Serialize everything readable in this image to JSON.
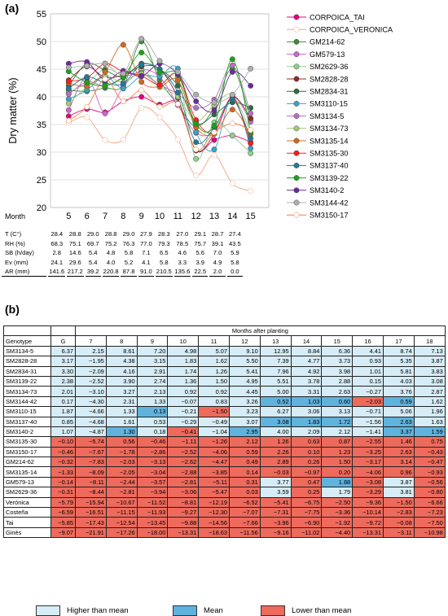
{
  "panel_a_label": "(a)",
  "panel_b_label": "(b)",
  "chart_data": [
    {
      "type": "line",
      "ylabel": "Dry matter (%)",
      "xlabel": "Month",
      "ylim": [
        20,
        55
      ],
      "yticks": [
        20,
        25,
        30,
        35,
        40,
        45,
        50,
        55
      ],
      "x": [
        5,
        6,
        7,
        8,
        9,
        10,
        11,
        12,
        13,
        14,
        15
      ],
      "legend_position": "right",
      "series": [
        {
          "name": "CORPOICA_TAI",
          "color": "#e6007e",
          "values": [
            36.5,
            37.8,
            37.2,
            39.2,
            40.0,
            38.6,
            38.8,
            30.3,
            32.2,
            33.0,
            31.8
          ]
        },
        {
          "name": "CORPOICA_VERONICA",
          "color": "#f4a582",
          "values": [
            35.3,
            36.3,
            32.2,
            32.3,
            38.0,
            36.3,
            32.3,
            25.8,
            29.5,
            24.3,
            23.0
          ]
        },
        {
          "name": "GM214-62",
          "color": "#3c8d3c",
          "values": [
            41.2,
            41.0,
            41.6,
            42.0,
            50.0,
            43.0,
            38.6,
            34.6,
            38.0,
            45.1,
            36.0
          ]
        },
        {
          "name": "GM579-13",
          "color": "#cc66cc",
          "values": [
            37.6,
            43.5,
            37.0,
            41.8,
            44.8,
            43.6,
            38.5,
            33.5,
            33.8,
            40.0,
            35.5
          ]
        },
        {
          "name": "SM2629-36",
          "color": "#8fd18f",
          "values": [
            40.8,
            42.5,
            45.0,
            44.0,
            45.0,
            42.2,
            43.6,
            28.8,
            35.4,
            33.0,
            29.8
          ]
        },
        {
          "name": "SM2828-28",
          "color": "#8b2c2c",
          "values": [
            43.0,
            45.5,
            43.5,
            44.0,
            45.5,
            45.0,
            39.8,
            30.4,
            33.3,
            40.0,
            36.1
          ]
        },
        {
          "name": "SM2834-31",
          "color": "#2e6b44",
          "values": [
            42.0,
            46.0,
            44.8,
            43.6,
            46.0,
            45.0,
            42.0,
            35.3,
            36.8,
            39.0,
            38.0
          ]
        },
        {
          "name": "SM3110-15",
          "color": "#3aa3c8",
          "values": [
            39.6,
            41.2,
            43.7,
            41.5,
            43.8,
            43.7,
            45.1,
            33.6,
            30.5,
            40.0,
            30.7
          ]
        },
        {
          "name": "SM3134-5",
          "color": "#b56fc2",
          "values": [
            40.5,
            42.7,
            42.0,
            43.5,
            44.3,
            42.2,
            40.5,
            38.0,
            39.5,
            45.7,
            37.0
          ]
        },
        {
          "name": "SM3134-73",
          "color": "#a5c97a",
          "values": [
            38.8,
            41.8,
            43.8,
            42.6,
            44.2,
            41.8,
            40.0,
            35.6,
            38.5,
            40.3,
            33.6
          ]
        },
        {
          "name": "SM3135-14",
          "color": "#d2691e",
          "values": [
            42.5,
            42.0,
            44.5,
            49.4,
            42.7,
            41.8,
            43.0,
            34.5,
            33.3,
            37.7,
            33.2
          ]
        },
        {
          "name": "SM3135-30",
          "color": "#ff1a1a",
          "values": [
            42.8,
            43.4,
            46.0,
            44.5,
            43.8,
            42.2,
            44.0,
            35.8,
            33.6,
            39.9,
            31.6
          ]
        },
        {
          "name": "SM3137-40",
          "color": "#1f7a99",
          "values": [
            41.5,
            43.6,
            42.5,
            42.4,
            45.8,
            45.0,
            40.8,
            31.8,
            34.4,
            39.5,
            32.5
          ]
        },
        {
          "name": "SM3139-22",
          "color": "#18a518",
          "values": [
            44.6,
            42.6,
            42.0,
            43.6,
            48.0,
            44.4,
            44.0,
            35.1,
            34.8,
            46.8,
            33.6
          ]
        },
        {
          "name": "SM3140-2",
          "color": "#6a2c9c",
          "values": [
            46.0,
            46.3,
            43.0,
            44.7,
            43.7,
            46.0,
            44.1,
            39.2,
            37.5,
            44.5,
            42.0
          ]
        },
        {
          "name": "SM3144-42",
          "color": "#b0b0b0",
          "values": [
            45.3,
            45.6,
            46.0,
            44.2,
            50.5,
            46.5,
            44.5,
            40.4,
            39.0,
            40.4,
            45.1
          ]
        },
        {
          "name": "SM3150-17",
          "color": "#f08040",
          "values": [
            35.7,
            38.2,
            43.2,
            39.2,
            41.2,
            38.2,
            38.7,
            30.5,
            33.6,
            35.2,
            34.0
          ]
        }
      ]
    },
    {
      "type": "table",
      "top_header": "Months after planting",
      "columns": [
        "Genotype",
        "G",
        "7",
        "8",
        "9",
        "10",
        "11",
        "12",
        "13",
        "14",
        "15",
        "16",
        "17",
        "18"
      ],
      "legend": [
        "Higher than mean",
        "Mean",
        "Lower than mean"
      ],
      "rows": [
        {
          "genotype": "SM3134-5",
          "values": [
            "6.37",
            "2.15",
            "8.61",
            "7.20",
            "4.98",
            "5.07",
            "9.10",
            "12.95",
            "8.84",
            "6.36",
            "4.41",
            "8.74",
            "7.13"
          ],
          "cats": [
            "h",
            "h",
            "h",
            "h",
            "h",
            "h",
            "h",
            "h",
            "h",
            "h",
            "h",
            "h",
            "h"
          ]
        },
        {
          "genotype": "SM2828-28",
          "values": [
            "3.17",
            "−1.95",
            "4.38",
            "3.15",
            "1.83",
            "1.62",
            "5.50",
            "7.39",
            "4.77",
            "3.73",
            "0.93",
            "5.35",
            "3.87"
          ],
          "cats": [
            "h",
            "h",
            "h",
            "h",
            "h",
            "h",
            "h",
            "h",
            "h",
            "h",
            "h",
            "h",
            "h"
          ]
        },
        {
          "genotype": "SM2834-31",
          "values": [
            "3.30",
            "−2.09",
            "4.16",
            "2.91",
            "1.74",
            "1.26",
            "5.41",
            "7.96",
            "4.92",
            "3.98",
            "1.01",
            "5.81",
            "3.83"
          ],
          "cats": [
            "h",
            "h",
            "h",
            "h",
            "h",
            "h",
            "h",
            "h",
            "h",
            "h",
            "h",
            "h",
            "h"
          ]
        },
        {
          "genotype": "SM3139-22",
          "values": [
            "2.38",
            "−2.52",
            "3.90",
            "2.74",
            "1.36",
            "1.50",
            "4.95",
            "5.51",
            "3.78",
            "2.88",
            "0.15",
            "4.03",
            "3.08"
          ],
          "cats": [
            "h",
            "h",
            "h",
            "h",
            "h",
            "h",
            "h",
            "h",
            "h",
            "h",
            "h",
            "h",
            "h"
          ]
        },
        {
          "genotype": "SM3134-73",
          "values": [
            "2.01",
            "−3.10",
            "3.27",
            "2.13",
            "0.92",
            "0.92",
            "4.45",
            "5.00",
            "3.31",
            "2.63",
            "−0.27",
            "3.76",
            "2.87"
          ],
          "cats": [
            "h",
            "h",
            "h",
            "h",
            "h",
            "h",
            "h",
            "h",
            "h",
            "h",
            "h",
            "h",
            "h"
          ]
        },
        {
          "genotype": "SM3144-42",
          "values": [
            "0.17",
            "−4.30",
            "2.31",
            "1.33",
            "−0.07",
            "0.83",
            "3.26",
            "0.52",
            "1.03",
            "0.60",
            "−2.03",
            "0.59",
            "1.62"
          ],
          "cats": [
            "h",
            "h",
            "h",
            "h",
            "h",
            "h",
            "h",
            "m",
            "m",
            "m",
            "l",
            "m",
            "h"
          ]
        },
        {
          "genotype": "SM3110-15",
          "values": [
            "1.87",
            "−4.66",
            "1.33",
            "0.13",
            "−0.21",
            "−1.50",
            "3.23",
            "6.27",
            "3.06",
            "3.13",
            "−0.71",
            "5.06",
            "1.96"
          ],
          "cats": [
            "h",
            "h",
            "h",
            "m",
            "h",
            "l",
            "h",
            "h",
            "h",
            "h",
            "h",
            "h",
            "h"
          ]
        },
        {
          "genotype": "SM3137-40",
          "values": [
            "0.85",
            "−4.68",
            "1.61",
            "0.53",
            "−0.29",
            "−0.49",
            "3.07",
            "3.08",
            "1.83",
            "1.72",
            "−1.56",
            "2.63",
            "1.63"
          ],
          "cats": [
            "h",
            "h",
            "h",
            "h",
            "h",
            "h",
            "h",
            "m",
            "m",
            "m",
            "h",
            "m",
            "h"
          ]
        },
        {
          "genotype": "SM3140-2",
          "values": [
            "1.07",
            "−4.87",
            "1.30",
            "0.18",
            "−0.41",
            "−1.04",
            "2.95",
            "4.00",
            "2.09",
            "2.12",
            "−1.41",
            "3.37",
            "1.59"
          ],
          "cats": [
            "h",
            "h",
            "m",
            "h",
            "l",
            "h",
            "m",
            "h",
            "h",
            "h",
            "h",
            "m",
            "m"
          ]
        },
        {
          "genotype": "SM3135-30",
          "values": [
            "−0.10",
            "−5.74",
            "0.56",
            "−0.46",
            "−1.11",
            "−1.26",
            "2.12",
            "1.26",
            "0.63",
            "0.87",
            "−2.55",
            "1.46",
            "0.75"
          ],
          "cats": [
            "l",
            "l",
            "l",
            "l",
            "l",
            "l",
            "l",
            "l",
            "l",
            "l",
            "l",
            "l",
            "l"
          ]
        },
        {
          "genotype": "SM3150-17",
          "values": [
            "−0.46",
            "−7.67",
            "−1.78",
            "−2.86",
            "−2.52",
            "−4.06",
            "0.59",
            "2.26",
            "0.10",
            "1.23",
            "−3.25",
            "2.63",
            "−0.43"
          ],
          "cats": [
            "l",
            "l",
            "l",
            "l",
            "l",
            "l",
            "l",
            "l",
            "l",
            "l",
            "l",
            "l",
            "l"
          ]
        },
        {
          "genotype": "GM214-62",
          "values": [
            "−0.32",
            "−7.83",
            "−2.03",
            "−3.13",
            "−2.62",
            "−4.47",
            "0.49",
            "2.89",
            "0.26",
            "1.50",
            "−3.17",
            "3.14",
            "−0.47"
          ],
          "cats": [
            "l",
            "l",
            "l",
            "l",
            "l",
            "l",
            "l",
            "l",
            "l",
            "l",
            "l",
            "l",
            "l"
          ]
        },
        {
          "genotype": "SM3135-14",
          "values": [
            "−1.33",
            "−8.09",
            "−2.05",
            "−3.04",
            "−2.88",
            "−3.85",
            "0.14",
            "−0.03",
            "−0.97",
            "0.20",
            "−4.06",
            "0.96",
            "−0.93"
          ],
          "cats": [
            "l",
            "l",
            "l",
            "l",
            "l",
            "l",
            "l",
            "l",
            "l",
            "l",
            "l",
            "l",
            "l"
          ]
        },
        {
          "genotype": "GM579-13",
          "values": [
            "−0.14",
            "−8.11",
            "−2.44",
            "−3.57",
            "−2.81",
            "−5.11",
            "0.31",
            "3.77",
            "0.47",
            "1.88",
            "−3.08",
            "3.87",
            "−0.56"
          ],
          "cats": [
            "l",
            "l",
            "l",
            "l",
            "l",
            "l",
            "l",
            "h",
            "l",
            "m",
            "l",
            "h",
            "l"
          ]
        },
        {
          "genotype": "SM2629-36",
          "values": [
            "−0.31",
            "−8.44",
            "−2.81",
            "−3.94",
            "−3.06",
            "−5.47",
            "0.03",
            "3.59",
            "0.25",
            "1.79",
            "−3.29",
            "3.81",
            "−0.80"
          ],
          "cats": [
            "l",
            "l",
            "l",
            "l",
            "l",
            "l",
            "l",
            "h",
            "l",
            "h",
            "l",
            "h",
            "l"
          ]
        },
        {
          "genotype": "Verónica",
          "values": [
            "−5.79",
            "−15.94",
            "−10.67",
            "−11.52",
            "−8.81",
            "−12.19",
            "−6.52",
            "−5.41",
            "−6.75",
            "−2.50",
            "−9.36",
            "−1.50",
            "−6.66"
          ],
          "cats": [
            "l",
            "l",
            "l",
            "l",
            "l",
            "l",
            "l",
            "l",
            "l",
            "l",
            "l",
            "l",
            "l"
          ]
        },
        {
          "genotype": "Costeña",
          "values": [
            "−6.59",
            "−16.51",
            "−11.15",
            "−11.93",
            "−9.27",
            "−12.30",
            "−7.07",
            "−7.31",
            "−7.75",
            "−3.36",
            "−10.14",
            "−2.83",
            "−7.23"
          ],
          "cats": [
            "l",
            "l",
            "l",
            "l",
            "l",
            "l",
            "l",
            "l",
            "l",
            "l",
            "l",
            "l",
            "l"
          ]
        },
        {
          "genotype": "Tai",
          "values": [
            "−5.85",
            "−17.43",
            "−12.54",
            "−13.45",
            "−9.88",
            "−14.56",
            "−7.66",
            "−3.96",
            "−6.90",
            "−1.92",
            "−9.72",
            "−0.08",
            "−7.50"
          ],
          "cats": [
            "l",
            "l",
            "l",
            "l",
            "l",
            "l",
            "l",
            "l",
            "l",
            "l",
            "l",
            "l",
            "l"
          ]
        },
        {
          "genotype": "Ginés",
          "values": [
            "−9.07",
            "−21.91",
            "−17.26",
            "−18.00",
            "−13.31",
            "−18.63",
            "−11.56",
            "−9.16",
            "−11.02",
            "−4.40",
            "−13.31",
            "−3.11",
            "−10.98"
          ],
          "cats": [
            "l",
            "l",
            "l",
            "l",
            "l",
            "l",
            "l",
            "l",
            "l",
            "l",
            "l",
            "l",
            "l"
          ]
        }
      ]
    }
  ],
  "weather": {
    "rows": [
      {
        "label": "T (C°)",
        "values": [
          "28.4",
          "28.8",
          "29.0",
          "28.8",
          "29.0",
          "27.9",
          "28.3",
          "27.0",
          "29.1",
          "28.7",
          "27.4"
        ]
      },
      {
        "label": "RH (%)",
        "values": [
          "68.3",
          "75.1",
          "69.7",
          "75.2",
          "76.3",
          "77.0",
          "79.3",
          "78.5",
          "75.7",
          "39.1",
          "43.5"
        ]
      },
      {
        "label": "SB (h/day)",
        "values": [
          "2.8",
          "14.6",
          "5.4",
          "4.8",
          "5.8",
          "7.1",
          "6.5",
          "4.6",
          "5.6",
          "7.0",
          "5.9"
        ]
      },
      {
        "label": "Ev (mm)",
        "values": [
          "24.1",
          "29.6",
          "5.4",
          "4.0",
          "5.2",
          "4.1",
          "5.8",
          "3.3",
          "3.9",
          "4.9",
          "5.8"
        ]
      },
      {
        "label": "AR (mm)",
        "values": [
          "141.6",
          "217.2",
          "39.2",
          "220.8",
          "87.8",
          "91.0",
          "210.5",
          "135.6",
          "22.5",
          "2.0",
          "0.0"
        ]
      }
    ]
  }
}
